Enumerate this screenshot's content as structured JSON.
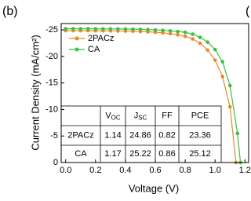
{
  "chart_data": {
    "type": "line",
    "panel_label": "(b)",
    "next_panel_label": "(",
    "xlabel": "Voltage (V)",
    "ylabel": "Current Density (mA/cm²)",
    "xlim": [
      -0.03,
      1.23
    ],
    "ylim": [
      0,
      -26.2
    ],
    "xticks": [
      {
        "value": 0,
        "label": "0.0"
      },
      {
        "value": 0.2,
        "label": "0.2"
      },
      {
        "value": 0.4,
        "label": "0.4"
      },
      {
        "value": 0.6,
        "label": "0.6"
      },
      {
        "value": 0.8,
        "label": "0.8"
      },
      {
        "value": 1,
        "label": "1.0"
      },
      {
        "value": 1.2,
        "label": "1.2"
      }
    ],
    "yticks": [
      0,
      -5,
      -10,
      -15,
      -20,
      -25
    ],
    "legend": "upper left",
    "series": [
      {
        "name": "2PACz",
        "color": "#e8892c",
        "x": [
          0,
          0.05,
          0.1,
          0.15,
          0.2,
          0.25,
          0.3,
          0.35,
          0.4,
          0.45,
          0.5,
          0.55,
          0.6,
          0.65,
          0.7,
          0.75,
          0.8,
          0.85,
          0.9,
          0.95,
          1.0,
          1.05,
          1.1,
          1.14
        ],
        "values": [
          -24.86,
          -24.86,
          -24.85,
          -24.85,
          -24.84,
          -24.83,
          -24.82,
          -24.8,
          -24.78,
          -24.75,
          -24.7,
          -24.65,
          -24.55,
          -24.45,
          -24.3,
          -24.1,
          -23.8,
          -23.3,
          -22.5,
          -21.2,
          -19.3,
          -16.2,
          -10.5,
          0
        ]
      },
      {
        "name": "CA",
        "color": "#3dbf3d",
        "x": [
          0,
          0.05,
          0.1,
          0.15,
          0.2,
          0.25,
          0.3,
          0.35,
          0.4,
          0.45,
          0.5,
          0.55,
          0.6,
          0.65,
          0.7,
          0.75,
          0.8,
          0.85,
          0.9,
          0.95,
          1.0,
          1.05,
          1.1,
          1.15,
          1.17
        ],
        "values": [
          -25.22,
          -25.22,
          -25.21,
          -25.21,
          -25.2,
          -25.2,
          -25.19,
          -25.18,
          -25.16,
          -25.14,
          -25.1,
          -25.06,
          -25.0,
          -24.92,
          -24.82,
          -24.7,
          -24.55,
          -24.2,
          -23.6,
          -22.7,
          -21.3,
          -19.0,
          -14.5,
          -5.5,
          0
        ]
      }
    ],
    "table": {
      "columns": [
        {
          "text": "V",
          "sub": "OC"
        },
        {
          "text": "J",
          "sub": "SC"
        },
        "FF",
        "PCE"
      ],
      "rows": [
        [
          "2PACz",
          1.14,
          24.86,
          0.82,
          23.36
        ],
        [
          "CA",
          1.17,
          25.22,
          0.86,
          25.12
        ]
      ]
    }
  }
}
